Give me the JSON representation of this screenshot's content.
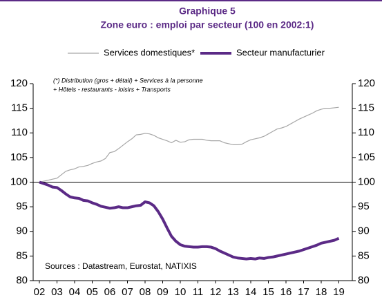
{
  "chart_data": {
    "type": "line",
    "title": "Graphique 5",
    "subtitle": "Zone euro : emploi par secteur (100 en 2002:1)",
    "note": [
      "(*) Distribution (gros + détail) + Services à la personne",
      "+ Hôtels - restaurants - loisirs + Transports"
    ],
    "source": "Sources : Datastream,  Eurostat,  NATIXIS",
    "categories": [
      "02",
      null,
      null,
      null,
      "03",
      null,
      null,
      null,
      "04",
      null,
      null,
      null,
      "05",
      null,
      null,
      null,
      "06",
      null,
      null,
      null,
      "07",
      null,
      null,
      null,
      "08",
      null,
      null,
      null,
      "09",
      null,
      null,
      null,
      "10",
      null,
      null,
      null,
      "11",
      null,
      null,
      null,
      "12",
      null,
      null,
      null,
      "13",
      null,
      null,
      null,
      "14",
      null,
      null,
      null,
      "15",
      null,
      null,
      null,
      "16",
      null,
      null,
      null,
      "17",
      null,
      null,
      null,
      "18",
      null,
      null,
      null,
      "19"
    ],
    "series": [
      {
        "name": "Services domestiques*",
        "color": "#a6a6a6",
        "width": 1.2,
        "values": [
          100,
          100.2,
          100.4,
          100.6,
          100.8,
          101.5,
          102.2,
          102.5,
          102.7,
          103.1,
          103.2,
          103.4,
          103.8,
          104.1,
          104.3,
          104.8,
          106,
          106.2,
          106.8,
          107.5,
          108.2,
          108.8,
          109.6,
          109.7,
          109.9,
          109.8,
          109.5,
          109.0,
          108.7,
          108.4,
          108.0,
          108.5,
          108.1,
          108.2,
          108.6,
          108.7,
          108.7,
          108.7,
          108.5,
          108.4,
          108.4,
          108.4,
          108.0,
          107.8,
          107.6,
          107.6,
          107.7,
          108.2,
          108.6,
          108.8,
          109.0,
          109.3,
          109.8,
          110.3,
          110.8,
          111.0,
          111.3,
          111.8,
          112.3,
          112.8,
          113.2,
          113.6,
          114.0,
          114.5,
          114.8,
          115.0,
          115.0,
          115.1,
          115.2
        ]
      },
      {
        "name": "Secteur manufacturier",
        "color": "#5b2a86",
        "width": 4,
        "values": [
          100,
          99.7,
          99.4,
          99.0,
          98.9,
          98.3,
          97.6,
          97.0,
          96.8,
          96.7,
          96.3,
          96.2,
          95.8,
          95.5,
          95.1,
          94.9,
          94.7,
          94.8,
          95.0,
          94.8,
          94.8,
          95.0,
          95.2,
          95.3,
          96.0,
          95.8,
          95.2,
          94.0,
          92.5,
          90.7,
          89.0,
          88.0,
          87.3,
          87.0,
          86.9,
          86.8,
          86.8,
          86.9,
          86.9,
          86.8,
          86.5,
          86.0,
          85.6,
          85.2,
          84.8,
          84.6,
          84.5,
          84.4,
          84.5,
          84.4,
          84.6,
          84.5,
          84.7,
          84.8,
          85.0,
          85.2,
          85.4,
          85.6,
          85.8,
          86.0,
          86.3,
          86.6,
          86.9,
          87.2,
          87.6,
          87.8,
          88.0,
          88.2,
          88.6
        ]
      }
    ],
    "hline": 100,
    "ylim": [
      80,
      120
    ],
    "yticks": [
      80,
      85,
      90,
      95,
      100,
      105,
      110,
      115,
      120
    ],
    "y2lim": [
      80,
      120
    ],
    "y2ticks": [
      80,
      85,
      90,
      95,
      100,
      105,
      110,
      115,
      120
    ],
    "legend": "top"
  }
}
